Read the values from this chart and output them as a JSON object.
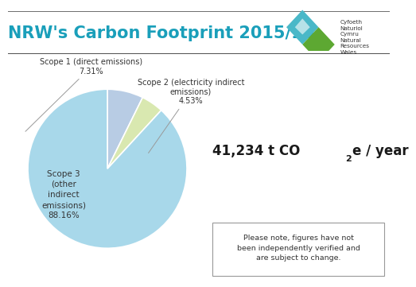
{
  "title": "NRW's Carbon Footprint 2015/16",
  "title_color": "#1a9fba",
  "slices": [
    7.31,
    4.53,
    88.16
  ],
  "colors": [
    "#b8cce4",
    "#d9e8b0",
    "#a8d8ea"
  ],
  "startangle": 90,
  "note_text": "Please note, figures have not\nbeen independently verified and\nare subject to change.",
  "top_line_color": "#555555",
  "background_color": "#ffffff",
  "label1_line1": "Scope 1 (direct emissions)",
  "label1_line2": "7.31%",
  "label2_line1": "Scope 2 (electricity indirect",
  "label2_line2": "emissions)",
  "label2_line3": "4.53%",
  "label3_line1": "Scope 3",
  "label3_line2": "(other",
  "label3_line3": "indirect",
  "label3_line4": "emissions)",
  "label3_line5": "88.16%",
  "total_main": "41,234 t CO",
  "total_sub": "2",
  "total_end": "e / year",
  "logo_text": "Cyfoeth\nNaturiol\nCymru\nNatural\nResources\nWales"
}
